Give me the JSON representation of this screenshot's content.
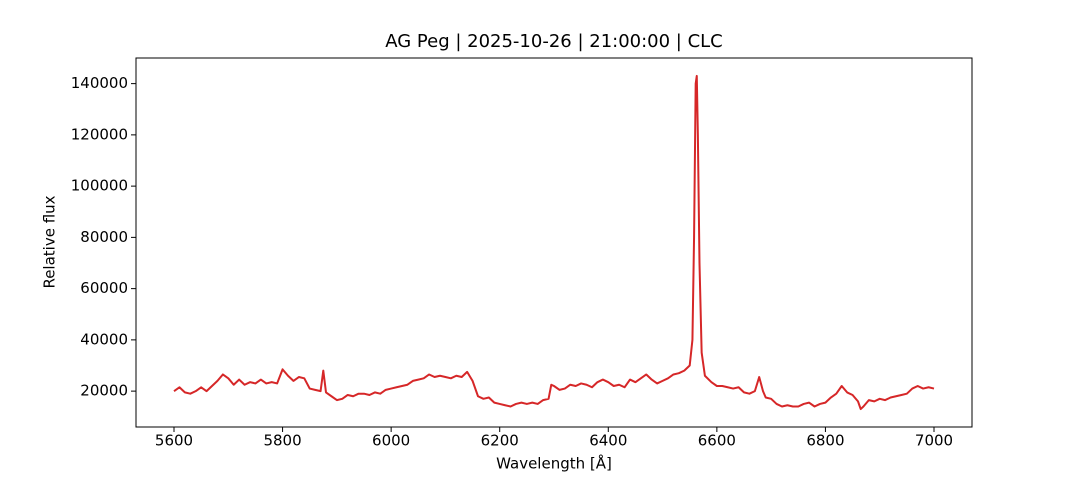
{
  "chart_data": {
    "type": "line",
    "title": "AG Peg | 2025-10-26 | 21:00:00 | CLC",
    "x_label": "Wavelength [Å]",
    "y_label": "Relative flux",
    "x": [
      5600,
      5610,
      5620,
      5630,
      5640,
      5650,
      5660,
      5670,
      5680,
      5690,
      5700,
      5710,
      5720,
      5730,
      5740,
      5750,
      5760,
      5770,
      5780,
      5790,
      5800,
      5810,
      5820,
      5830,
      5840,
      5850,
      5860,
      5870,
      5875,
      5880,
      5890,
      5900,
      5910,
      5920,
      5930,
      5940,
      5950,
      5960,
      5970,
      5980,
      5990,
      6000,
      6010,
      6020,
      6030,
      6040,
      6050,
      6060,
      6070,
      6080,
      6090,
      6100,
      6110,
      6120,
      6130,
      6140,
      6150,
      6160,
      6170,
      6180,
      6190,
      6200,
      6210,
      6220,
      6230,
      6240,
      6250,
      6260,
      6270,
      6280,
      6290,
      6295,
      6300,
      6310,
      6320,
      6330,
      6340,
      6350,
      6360,
      6370,
      6380,
      6390,
      6400,
      6410,
      6420,
      6430,
      6440,
      6450,
      6460,
      6470,
      6480,
      6490,
      6500,
      6510,
      6520,
      6530,
      6540,
      6550,
      6555,
      6558,
      6561,
      6563,
      6565,
      6568,
      6572,
      6578,
      6590,
      6600,
      6610,
      6620,
      6630,
      6640,
      6650,
      6660,
      6670,
      6678,
      6685,
      6690,
      6700,
      6710,
      6720,
      6730,
      6740,
      6750,
      6760,
      6770,
      6780,
      6790,
      6800,
      6810,
      6820,
      6830,
      6840,
      6850,
      6860,
      6865,
      6870,
      6880,
      6890,
      6900,
      6910,
      6920,
      6930,
      6940,
      6950,
      6960,
      6970,
      6980,
      6990,
      7000
    ],
    "series": [
      {
        "color": "#d62728",
        "values": [
          20000,
          21500,
          19500,
          19000,
          20000,
          21500,
          20000,
          22000,
          24000,
          26500,
          25000,
          22500,
          24500,
          22500,
          23500,
          23000,
          24500,
          23000,
          23500,
          23000,
          28500,
          26000,
          24000,
          25500,
          25000,
          21000,
          20500,
          20000,
          28000,
          19500,
          18000,
          16500,
          17000,
          18500,
          18000,
          19000,
          19000,
          18500,
          19500,
          19000,
          20500,
          21000,
          21500,
          22000,
          22500,
          24000,
          24500,
          25000,
          26500,
          25500,
          26000,
          25500,
          25000,
          26000,
          25500,
          27500,
          24000,
          18000,
          17000,
          17500,
          15500,
          15000,
          14500,
          14000,
          15000,
          15500,
          15000,
          15500,
          15000,
          16500,
          17000,
          22500,
          22000,
          20500,
          21000,
          22500,
          22000,
          23000,
          22500,
          21500,
          23500,
          24500,
          23500,
          22000,
          22500,
          21500,
          24500,
          23500,
          25000,
          26500,
          24500,
          23000,
          24000,
          25000,
          26500,
          27000,
          28000,
          30000,
          40000,
          80000,
          140000,
          143000,
          120000,
          70000,
          35000,
          26000,
          23500,
          22000,
          22000,
          21500,
          21000,
          21500,
          19500,
          19000,
          20000,
          25500,
          20000,
          17500,
          17000,
          15000,
          14000,
          14500,
          14000,
          14000,
          15000,
          15500,
          14000,
          15000,
          15500,
          17500,
          19000,
          22000,
          19500,
          18500,
          16000,
          13000,
          14000,
          16500,
          16000,
          17000,
          16500,
          17500,
          18000,
          18500,
          19000,
          21000,
          22000,
          21000,
          21500,
          21000
        ]
      }
    ],
    "xlim": [
      5530,
      7070
    ],
    "xticks": [
      5600,
      5800,
      6000,
      6200,
      6400,
      6600,
      6800,
      7000
    ],
    "ylim": [
      6000,
      150000
    ],
    "yticks": [
      20000,
      40000,
      60000,
      80000,
      100000,
      120000,
      140000
    ],
    "grid": false
  }
}
